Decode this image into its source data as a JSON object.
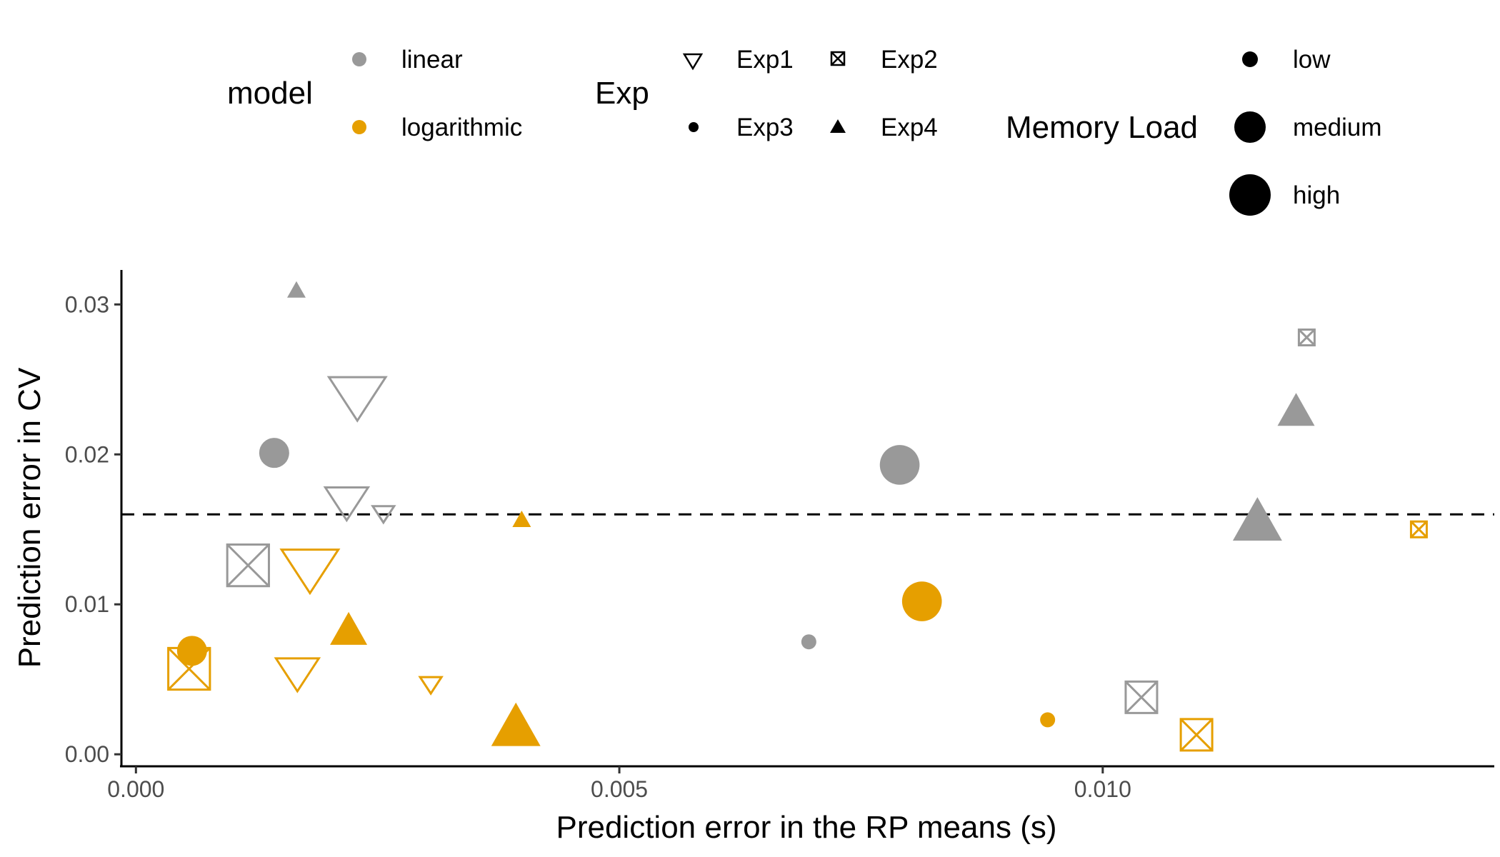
{
  "chart_data": {
    "type": "scatter",
    "xlabel": "Prediction error in the RP means (s)",
    "ylabel": "Prediction error in CV",
    "xlim": [
      -0.00015,
      0.01405
    ],
    "ylim": [
      -0.0008,
      0.0323
    ],
    "x_ticks": [
      0.0,
      0.005,
      0.01
    ],
    "x_tick_labels": [
      "0.000",
      "0.005",
      "0.010"
    ],
    "y_ticks": [
      0.0,
      0.01,
      0.02,
      0.03
    ],
    "y_tick_labels": [
      "0.00",
      "0.01",
      "0.02",
      "0.03"
    ],
    "reference_line": {
      "y": 0.016,
      "style": "dashed"
    },
    "grid": false,
    "legend_position": "top",
    "colors": {
      "linear": "#999999",
      "logarithmic": "#E69F00"
    },
    "legends": {
      "model": {
        "title": "model",
        "entries": [
          "linear",
          "logarithmic"
        ]
      },
      "exp": {
        "title": "Exp",
        "entries": [
          "Exp1",
          "Exp2",
          "Exp3",
          "Exp4"
        ]
      },
      "memory_load": {
        "title": "Memory Load",
        "entries": [
          "low",
          "medium",
          "high"
        ]
      }
    },
    "points": [
      {
        "x": 0.00166,
        "y": 0.031,
        "model": "linear",
        "exp": "Exp4",
        "load": "low"
      },
      {
        "x": 0.00143,
        "y": 0.0201,
        "model": "linear",
        "exp": "Exp3",
        "load": "medium"
      },
      {
        "x": 0.00229,
        "y": 0.0237,
        "model": "linear",
        "exp": "Exp1",
        "load": "high"
      },
      {
        "x": 0.00218,
        "y": 0.0167,
        "model": "linear",
        "exp": "Exp1",
        "load": "medium"
      },
      {
        "x": 0.00256,
        "y": 0.016,
        "model": "linear",
        "exp": "Exp1",
        "load": "low"
      },
      {
        "x": 0.00116,
        "y": 0.0126,
        "model": "linear",
        "exp": "Exp2",
        "load": "high"
      },
      {
        "x": 0.00696,
        "y": 0.0075,
        "model": "linear",
        "exp": "Exp3",
        "load": "low"
      },
      {
        "x": 0.0079,
        "y": 0.0193,
        "model": "linear",
        "exp": "Exp3",
        "load": "high"
      },
      {
        "x": 0.0104,
        "y": 0.0038,
        "model": "linear",
        "exp": "Exp2",
        "load": "medium"
      },
      {
        "x": 0.0116,
        "y": 0.0157,
        "model": "linear",
        "exp": "Exp4",
        "load": "high"
      },
      {
        "x": 0.012,
        "y": 0.023,
        "model": "linear",
        "exp": "Exp4",
        "load": "medium"
      },
      {
        "x": 0.01211,
        "y": 0.0278,
        "model": "linear",
        "exp": "Exp2",
        "load": "low"
      },
      {
        "x": 0.0018,
        "y": 0.0122,
        "model": "logarithmic",
        "exp": "Exp1",
        "load": "high"
      },
      {
        "x": 0.00055,
        "y": 0.0057,
        "model": "logarithmic",
        "exp": "Exp2",
        "load": "high"
      },
      {
        "x": 0.00058,
        "y": 0.0069,
        "model": "logarithmic",
        "exp": "Exp3",
        "load": "medium"
      },
      {
        "x": 0.00167,
        "y": 0.0053,
        "model": "logarithmic",
        "exp": "Exp1",
        "load": "medium"
      },
      {
        "x": 0.00305,
        "y": 0.0046,
        "model": "logarithmic",
        "exp": "Exp1",
        "load": "low"
      },
      {
        "x": 0.0022,
        "y": 0.0084,
        "model": "logarithmic",
        "exp": "Exp4",
        "load": "medium"
      },
      {
        "x": 0.00393,
        "y": 0.002,
        "model": "logarithmic",
        "exp": "Exp4",
        "load": "high"
      },
      {
        "x": 0.00399,
        "y": 0.0157,
        "model": "logarithmic",
        "exp": "Exp4",
        "load": "low"
      },
      {
        "x": 0.00813,
        "y": 0.0102,
        "model": "logarithmic",
        "exp": "Exp3",
        "load": "high"
      },
      {
        "x": 0.00943,
        "y": 0.0023,
        "model": "logarithmic",
        "exp": "Exp3",
        "load": "low"
      },
      {
        "x": 0.01097,
        "y": 0.0013,
        "model": "logarithmic",
        "exp": "Exp2",
        "load": "medium"
      },
      {
        "x": 0.01327,
        "y": 0.015,
        "model": "logarithmic",
        "exp": "Exp2",
        "load": "low"
      }
    ]
  }
}
